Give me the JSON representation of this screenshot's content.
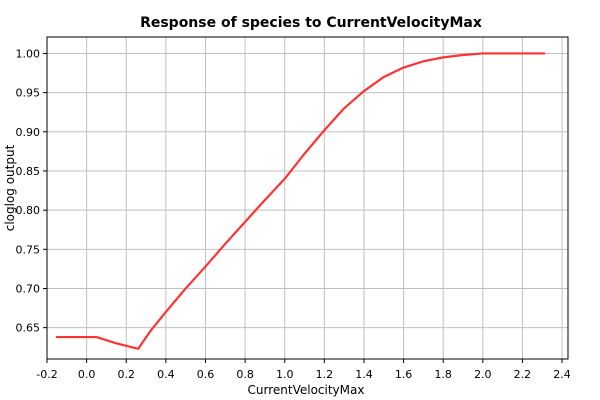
{
  "chart_data": {
    "type": "line",
    "title": "Response of species to CurrentVelocityMax",
    "xlabel": "CurrentVelocityMax",
    "ylabel": "cloglog output",
    "xlim": [
      -0.2,
      2.43
    ],
    "ylim": [
      0.61,
      1.021
    ],
    "xticks": [
      -0.2,
      0.0,
      0.2,
      0.4,
      0.6,
      0.8,
      1.0,
      1.2,
      1.4,
      1.6,
      1.8,
      2.0,
      2.2,
      2.4
    ],
    "xtick_labels": [
      "-0.2",
      "0.0",
      "0.2",
      "0.4",
      "0.6",
      "0.8",
      "1.0",
      "1.2",
      "1.4",
      "1.6",
      "1.8",
      "2.0",
      "2.2",
      "2.4"
    ],
    "yticks": [
      0.65,
      0.7,
      0.75,
      0.8,
      0.85,
      0.9,
      0.95,
      1.0
    ],
    "ytick_labels": [
      "0.65",
      "0.70",
      "0.75",
      "0.80",
      "0.85",
      "0.90",
      "0.95",
      "1.00"
    ],
    "grid": true,
    "series": [
      {
        "color": "#ff3333",
        "x": [
          -0.15,
          0.05,
          0.15,
          0.26,
          0.32,
          0.4,
          0.5,
          0.6,
          0.7,
          0.8,
          0.9,
          1.0,
          1.1,
          1.2,
          1.3,
          1.4,
          1.5,
          1.6,
          1.7,
          1.8,
          1.9,
          2.0,
          2.1,
          2.2,
          2.31
        ],
        "y": [
          0.638,
          0.638,
          0.63,
          0.623,
          0.645,
          0.67,
          0.7,
          0.728,
          0.757,
          0.785,
          0.813,
          0.84,
          0.872,
          0.902,
          0.93,
          0.952,
          0.97,
          0.982,
          0.99,
          0.995,
          0.998,
          1.0,
          1.0,
          1.0,
          1.0
        ]
      }
    ]
  }
}
